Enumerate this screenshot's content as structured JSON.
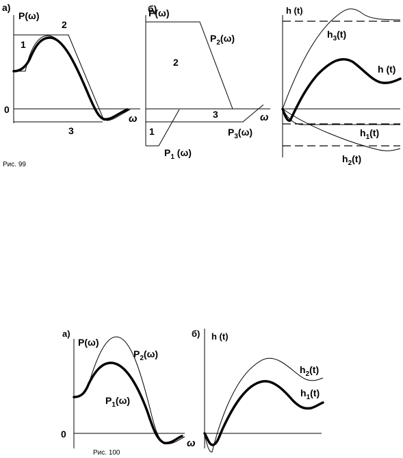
{
  "fig99": {
    "caption": "Рис. 99",
    "panel_a": {
      "tag": "а)",
      "ylabel": "P(ω)",
      "zero": "0",
      "xlabel": "ω",
      "num1": "1",
      "num2": "2",
      "num3": "3"
    },
    "panel_b": {
      "tag": "б)",
      "ylabel": "P(ω)",
      "p2": "P",
      "p2_sub": "2",
      "p2_tail": "(ω)",
      "num2": "2",
      "num3": "3",
      "num1": "1",
      "xlabel": "ω",
      "p1": "P",
      "p1_sub": "1",
      "p1_tail": " (ω)",
      "p3": "P",
      "p3_sub": "3",
      "p3_tail": "(ω)"
    },
    "panel_c": {
      "ylabel": "h (t)",
      "h3": "h",
      "h3_sub": "3",
      "h3_tail": "(t)",
      "h": "h (t)",
      "h1": "h",
      "h1_sub": "1",
      "h1_tail": "(t)",
      "h2": "h",
      "h2_sub": "2",
      "h2_tail": "(t)"
    }
  },
  "fig100": {
    "caption": "Рис. 100",
    "panel_a": {
      "tag": "а)",
      "ylabel": "P(ω)",
      "p2": "P",
      "p2_sub": "2",
      "p2_tail": "(ω)",
      "p1": "P",
      "p1_sub": "1",
      "p1_tail": "(ω)",
      "zero": "0",
      "xlabel": "ω"
    },
    "panel_b": {
      "tag": "б)",
      "ylabel": "h (t)",
      "h2": "h",
      "h2_sub": "2",
      "h2_tail": "(t)",
      "h1": "h",
      "h1_sub": "1",
      "h1_tail": "(t)"
    }
  }
}
